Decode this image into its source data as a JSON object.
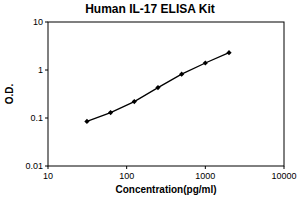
{
  "chart_data": {
    "type": "line",
    "title": "Human IL-17 ELISA Kit",
    "x_label": "Concentration(pg/ml)",
    "y_label": "O.D.",
    "x": [
      31.25,
      62.5,
      125,
      250,
      500,
      1000,
      2000
    ],
    "values": [
      0.085,
      0.13,
      0.22,
      0.43,
      0.82,
      1.4,
      2.3
    ],
    "color": "#000000",
    "marker": "diamond",
    "line_style": "solid",
    "log": true,
    "grid": false,
    "xlim": [
      10,
      10000
    ],
    "xticks": [
      10,
      100,
      1000,
      10000
    ],
    "ylim": [
      0.01,
      10
    ],
    "yticks": [
      0.01,
      0.1,
      1,
      10
    ]
  }
}
